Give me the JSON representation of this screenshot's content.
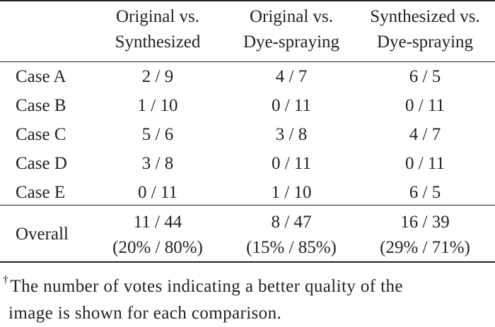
{
  "table": {
    "headers": [
      {
        "line1": "Original vs.",
        "line2": "Synthesized"
      },
      {
        "line1": "Original vs.",
        "line2": "Dye-spraying"
      },
      {
        "line1": "Synthesized vs.",
        "line2": "Dye-spraying"
      }
    ],
    "rows": [
      {
        "label": "Case A",
        "values": [
          "2 / 9",
          "4 / 7",
          "6 / 5"
        ]
      },
      {
        "label": "Case B",
        "values": [
          "1 / 10",
          "0 / 11",
          "0 / 11"
        ]
      },
      {
        "label": "Case C",
        "values": [
          "5 / 6",
          "3 / 8",
          "4 / 7"
        ]
      },
      {
        "label": "Case D",
        "values": [
          "3 / 8",
          "0 / 11",
          "0 / 11"
        ]
      },
      {
        "label": "Case E",
        "values": [
          "0 / 11",
          "1 / 10",
          "6 / 5"
        ]
      }
    ],
    "overall": {
      "label": "Overall",
      "counts": [
        "11 / 44",
        "8 / 47",
        "16 / 39"
      ],
      "percents": [
        "(20% / 80%)",
        "(15% / 85%)",
        "(29% / 71%)"
      ]
    }
  },
  "footnote": {
    "marker": "†",
    "line1": "The number of votes indicating a better quality of the",
    "line2": "image is shown for each comparison."
  }
}
